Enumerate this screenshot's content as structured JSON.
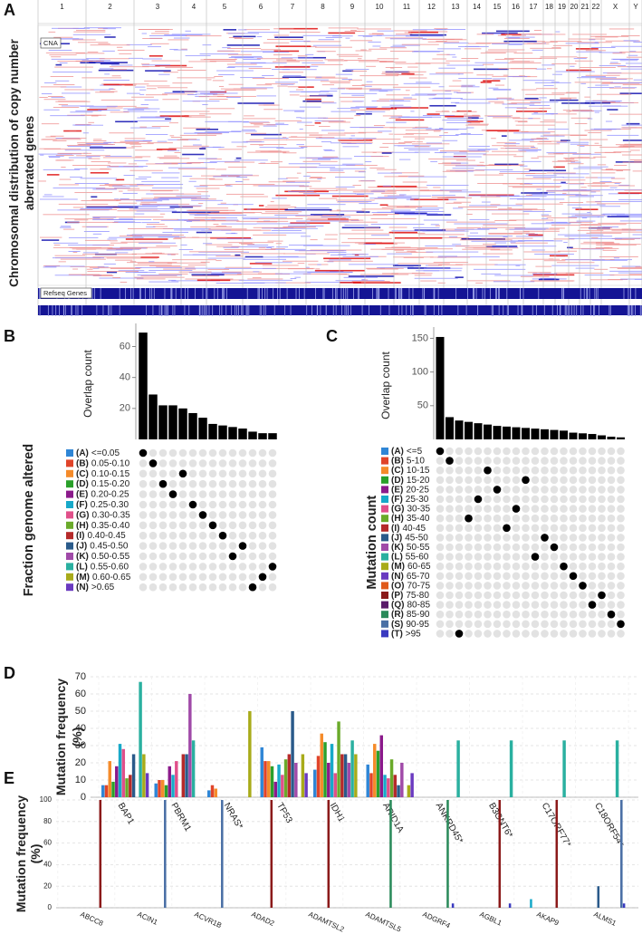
{
  "chart_data": [
    {
      "type": "heatmap",
      "panel": "A",
      "ylabel": [
        "Chromosomal distribution of copy number",
        "aberrated genes"
      ],
      "track_labels": [
        "CNA",
        "Refseq Genes"
      ],
      "chromosomes": [
        "1",
        "2",
        "3",
        "4",
        "5",
        "6",
        "7",
        "8",
        "9",
        "10",
        "11",
        "12",
        "13",
        "14",
        "15",
        "16",
        "17",
        "18",
        "19",
        "20",
        "21",
        "22",
        "X",
        "Y"
      ]
    },
    {
      "type": "upset",
      "panel": "B",
      "ylabel": "Overlap count",
      "color": "#000000",
      "values": [
        69,
        29,
        22,
        22,
        20,
        17,
        14,
        10,
        9,
        8,
        7,
        5,
        4,
        4
      ],
      "ylim": [
        0,
        72
      ],
      "yticks": [
        20,
        40,
        60
      ],
      "sets_title": "Fraction genome altered",
      "sets": [
        {
          "letter": "(A)",
          "range": "<=0.05",
          "color": "#2f86d6"
        },
        {
          "letter": "(B)",
          "range": "0.05-0.10",
          "color": "#e0442a"
        },
        {
          "letter": "(C)",
          "range": "0.10-0.15",
          "color": "#f58b2a"
        },
        {
          "letter": "(D)",
          "range": "0.15-0.20",
          "color": "#2aa02a"
        },
        {
          "letter": "(E)",
          "range": "0.20-0.25",
          "color": "#8b1a8b"
        },
        {
          "letter": "(F)",
          "range": "0.25-0.30",
          "color": "#17a9c9"
        },
        {
          "letter": "(G)",
          "range": "0.30-0.35",
          "color": "#e0508a"
        },
        {
          "letter": "(H)",
          "range": "0.35-0.40",
          "color": "#6aaa2a"
        },
        {
          "letter": "(I)",
          "range": "0.40-0.45",
          "color": "#b52a2a"
        },
        {
          "letter": "(J)",
          "range": "0.45-0.50",
          "color": "#2a5a8a"
        },
        {
          "letter": "(K)",
          "range": "0.50-0.55",
          "color": "#a04aa8"
        },
        {
          "letter": "(L)",
          "range": "0.55-0.60",
          "color": "#2ab0a0"
        },
        {
          "letter": "(M)",
          "range": "0.60-0.65",
          "color": "#a8ab1a"
        },
        {
          "letter": "(N)",
          "range": ">0.65",
          "color": "#6a3ac0"
        }
      ],
      "bar_set": [
        0,
        1,
        3,
        4,
        2,
        5,
        6,
        7,
        8,
        10,
        9,
        13,
        12,
        11
      ]
    },
    {
      "type": "upset",
      "panel": "C",
      "ylabel": "Overlap count",
      "color": "#000000",
      "values": [
        152,
        33,
        28,
        26,
        24,
        22,
        20,
        19,
        18,
        17,
        16,
        15,
        14,
        13,
        10,
        9,
        8,
        6,
        4,
        3
      ],
      "ylim": [
        0,
        160
      ],
      "yticks": [
        50,
        100,
        150
      ],
      "sets_title": "Mutation count",
      "sets": [
        {
          "letter": "(A)",
          "range": "<=5",
          "color": "#2f86d6"
        },
        {
          "letter": "(B)",
          "range": "5-10",
          "color": "#e0442a"
        },
        {
          "letter": "(C)",
          "range": "10-15",
          "color": "#f58b2a"
        },
        {
          "letter": "(D)",
          "range": "15-20",
          "color": "#2aa02a"
        },
        {
          "letter": "(E)",
          "range": "20-25",
          "color": "#8b1a8b"
        },
        {
          "letter": "(F)",
          "range": "25-30",
          "color": "#17a9c9"
        },
        {
          "letter": "(G)",
          "range": "30-35",
          "color": "#e0508a"
        },
        {
          "letter": "(H)",
          "range": "35-40",
          "color": "#6aaa2a"
        },
        {
          "letter": "(I)",
          "range": "40-45",
          "color": "#b52a2a"
        },
        {
          "letter": "(J)",
          "range": "45-50",
          "color": "#2a5a8a"
        },
        {
          "letter": "(K)",
          "range": "50-55",
          "color": "#a04aa8"
        },
        {
          "letter": "(L)",
          "range": "55-60",
          "color": "#2ab0a0"
        },
        {
          "letter": "(M)",
          "range": "60-65",
          "color": "#a8ab1a"
        },
        {
          "letter": "(N)",
          "range": "65-70",
          "color": "#6a3ac0"
        },
        {
          "letter": "(O)",
          "range": "70-75",
          "color": "#e05a1a"
        },
        {
          "letter": "(P)",
          "range": "75-80",
          "color": "#8b1a1a"
        },
        {
          "letter": "(Q)",
          "range": "80-85",
          "color": "#5a1a6a"
        },
        {
          "letter": "(R)",
          "range": "85-90",
          "color": "#2a8a5a"
        },
        {
          "letter": "(S)",
          "range": "90-95",
          "color": "#4a6fa5"
        },
        {
          "letter": "(T)",
          "range": ">95",
          "color": "#3a3ac0"
        }
      ],
      "bar_set": [
        0,
        1,
        19,
        7,
        5,
        2,
        4,
        8,
        6,
        3,
        11,
        9,
        10,
        12,
        13,
        14,
        16,
        15,
        17,
        18
      ]
    },
    {
      "type": "bar",
      "panel": "D",
      "ylabel": [
        "Mutation frequency",
        "(%)"
      ],
      "categories": [
        "BAP1",
        "PBRM1",
        "NRAS*",
        "TP53",
        "IDH1",
        "ARID1A",
        "ANKRD45*",
        "B3GNT6*",
        "C17ORF77*",
        "C18ORF54*"
      ],
      "ylim": [
        0,
        70
      ],
      "yticks": [
        0,
        10,
        20,
        30,
        40,
        50,
        60,
        70
      ],
      "grid": true,
      "series": [
        {
          "color": "#2f86d6",
          "values": [
            7,
            8,
            4,
            29,
            16,
            19,
            0,
            0,
            0,
            0
          ]
        },
        {
          "color": "#e0442a",
          "values": [
            7,
            10,
            7,
            21,
            24,
            14,
            0,
            0,
            0,
            0
          ]
        },
        {
          "color": "#f58b2a",
          "values": [
            21,
            10,
            5,
            21,
            37,
            31,
            0,
            0,
            0,
            0
          ]
        },
        {
          "color": "#2aa02a",
          "values": [
            9,
            7,
            0,
            18,
            32,
            27,
            0,
            0,
            0,
            0
          ]
        },
        {
          "color": "#8b1a8b",
          "values": [
            18,
            18,
            0,
            9,
            20,
            36,
            0,
            0,
            0,
            0
          ]
        },
        {
          "color": "#17a9c9",
          "values": [
            31,
            13,
            0,
            19,
            31,
            13,
            0,
            0,
            0,
            0
          ]
        },
        {
          "color": "#e0508a",
          "values": [
            28,
            21,
            0,
            13,
            14,
            11,
            0,
            0,
            0,
            0
          ]
        },
        {
          "color": "#6aaa2a",
          "values": [
            11,
            0,
            0,
            22,
            44,
            22,
            0,
            0,
            0,
            0
          ]
        },
        {
          "color": "#b52a2a",
          "values": [
            13,
            25,
            0,
            25,
            25,
            13,
            0,
            0,
            0,
            0
          ]
        },
        {
          "color": "#2a5a8a",
          "values": [
            25,
            25,
            0,
            50,
            25,
            7,
            0,
            0,
            0,
            0
          ]
        },
        {
          "color": "#a04aa8",
          "values": [
            0,
            60,
            0,
            20,
            20,
            20,
            0,
            0,
            0,
            0
          ]
        },
        {
          "color": "#2ab0a0",
          "values": [
            67,
            33,
            0,
            0,
            33,
            0,
            33,
            33,
            33,
            33
          ]
        },
        {
          "color": "#a8ab1a",
          "values": [
            25,
            0,
            50,
            25,
            25,
            7,
            0,
            0,
            0,
            0
          ]
        },
        {
          "color": "#6a3ac0",
          "values": [
            14,
            0,
            0,
            14,
            0,
            14,
            0,
            0,
            0,
            0
          ]
        }
      ]
    },
    {
      "type": "bar",
      "panel": "E",
      "ylabel": [
        "Mutation frequency",
        "(%)"
      ],
      "categories": [
        "ABCC8",
        "ACIN1",
        "ACVR1B",
        "ADAD2",
        "ADAMTSL2",
        "ADAMTSL5",
        "ADGRF4",
        "AGBL1",
        "AKAP9",
        "ALMS1"
      ],
      "ylim": [
        0,
        100
      ],
      "yticks": [
        0,
        20,
        40,
        60,
        80,
        100
      ],
      "grid": true,
      "series": [
        {
          "color": "#2f86d6",
          "values": [
            0,
            0,
            0,
            0,
            0,
            0,
            0,
            0,
            0,
            0
          ]
        },
        {
          "color": "#e0442a",
          "values": [
            0,
            0,
            0,
            0,
            0,
            0,
            0,
            0,
            0,
            0
          ]
        },
        {
          "color": "#f58b2a",
          "values": [
            0,
            0,
            0,
            0,
            0,
            0,
            0,
            0,
            0,
            0
          ]
        },
        {
          "color": "#2aa02a",
          "values": [
            0,
            0,
            0,
            0,
            0,
            0,
            0,
            0,
            0,
            0
          ]
        },
        {
          "color": "#8b1a8b",
          "values": [
            0,
            0,
            0,
            0,
            0,
            0,
            0,
            0,
            0,
            0
          ]
        },
        {
          "color": "#17a9c9",
          "values": [
            0,
            0,
            0,
            0,
            0,
            0,
            0,
            0,
            8,
            0
          ]
        },
        {
          "color": "#e0508a",
          "values": [
            0,
            0,
            0,
            0,
            0,
            0,
            0,
            0,
            0,
            0
          ]
        },
        {
          "color": "#6aaa2a",
          "values": [
            0,
            0,
            0,
            0,
            0,
            0,
            0,
            0,
            0,
            0
          ]
        },
        {
          "color": "#b52a2a",
          "values": [
            0,
            0,
            0,
            0,
            0,
            0,
            0,
            0,
            0,
            0
          ]
        },
        {
          "color": "#2a5a8a",
          "values": [
            0,
            0,
            0,
            0,
            0,
            0,
            0,
            0,
            0,
            20
          ]
        },
        {
          "color": "#a04aa8",
          "values": [
            0,
            0,
            0,
            0,
            0,
            0,
            0,
            0,
            0,
            0
          ]
        },
        {
          "color": "#2ab0a0",
          "values": [
            0,
            0,
            0,
            0,
            0,
            0,
            0,
            0,
            0,
            0
          ]
        },
        {
          "color": "#a8ab1a",
          "values": [
            0,
            0,
            0,
            0,
            0,
            0,
            0,
            0,
            0,
            0
          ]
        },
        {
          "color": "#6a3ac0",
          "values": [
            0,
            0,
            0,
            0,
            0,
            0,
            0,
            0,
            0,
            0
          ]
        },
        {
          "color": "#e05a1a",
          "values": [
            0,
            0,
            0,
            0,
            0,
            0,
            0,
            0,
            0,
            0
          ]
        },
        {
          "color": "#8b1a1a",
          "values": [
            100,
            0,
            0,
            100,
            100,
            0,
            0,
            100,
            100,
            0
          ]
        },
        {
          "color": "#5a1a6a",
          "values": [
            0,
            0,
            0,
            0,
            0,
            0,
            0,
            0,
            0,
            0
          ]
        },
        {
          "color": "#2a8a5a",
          "values": [
            0,
            0,
            0,
            0,
            0,
            100,
            100,
            0,
            0,
            0
          ]
        },
        {
          "color": "#4a6fa5",
          "values": [
            0,
            100,
            100,
            0,
            0,
            0,
            0,
            0,
            0,
            100
          ]
        },
        {
          "color": "#3a3ac0",
          "values": [
            0,
            0,
            0,
            0,
            0,
            0,
            4,
            4,
            0,
            4
          ]
        }
      ]
    }
  ]
}
